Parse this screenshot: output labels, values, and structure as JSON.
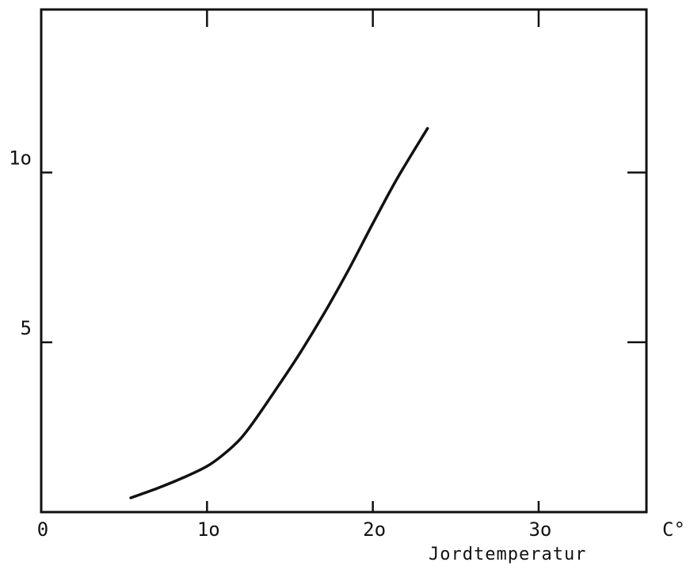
{
  "chart_data": {
    "type": "line",
    "title": "",
    "xlabel": "Jordtemperatur",
    "x_unit": "C°",
    "ylabel": "",
    "xlim": [
      0,
      36.5
    ],
    "ylim": [
      0,
      14.8
    ],
    "x_ticks": [
      0,
      10,
      20,
      30
    ],
    "x_tick_labels": [
      "0",
      "1o",
      "2o",
      "3o"
    ],
    "y_ticks": [
      5,
      10
    ],
    "y_tick_labels": [
      "5",
      "1o"
    ],
    "grid": false,
    "series": [
      {
        "color": "#111111",
        "x": [
          5.4,
          7.0,
          8.5,
          10.0,
          11.0,
          12.0,
          12.8,
          14.0,
          15.5,
          17.0,
          18.5,
          20.0,
          21.5,
          23.3
        ],
        "y": [
          0.42,
          0.7,
          1.0,
          1.35,
          1.7,
          2.15,
          2.65,
          3.5,
          4.6,
          5.8,
          7.1,
          8.5,
          9.85,
          11.3
        ]
      }
    ]
  }
}
